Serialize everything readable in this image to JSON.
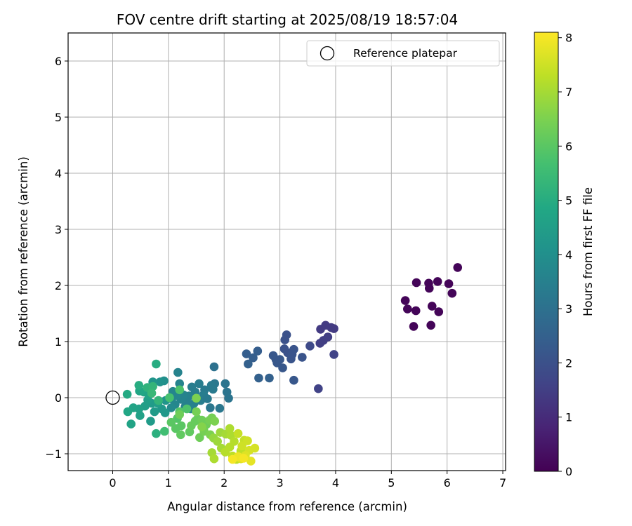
{
  "chart_data": {
    "type": "scatter",
    "title": "FOV centre drift starting at 2025/08/19 18:57:04",
    "xlabel": "Angular distance from reference (arcmin)",
    "ylabel": "Rotation from reference (arcmin)",
    "xlim": [
      -0.8,
      7.05
    ],
    "ylim": [
      -1.3,
      6.5
    ],
    "xticks": [
      "0",
      "1",
      "2",
      "3",
      "4",
      "5",
      "6",
      "7"
    ],
    "yticks": [
      "−1",
      "0",
      "1",
      "2",
      "3",
      "4",
      "5",
      "6"
    ],
    "grid": true,
    "legend": {
      "position": "top-right",
      "entries": [
        "Reference platepar"
      ]
    },
    "reference_point": {
      "label": "Reference platepar",
      "x": 0.0,
      "y": 0.0,
      "marker": "open-circle"
    },
    "colorbar": {
      "label": "Hours from first FF file",
      "range": [
        0,
        8.1
      ],
      "ticks": [
        "0",
        "1",
        "2",
        "3",
        "4",
        "5",
        "6",
        "7",
        "8"
      ],
      "colormap": "viridis"
    },
    "color_stops": [
      "#440154",
      "#482475",
      "#414487",
      "#355f8d",
      "#2a788e",
      "#21918c",
      "#22a884",
      "#44bf70",
      "#7ad151",
      "#bddf26",
      "#fde725"
    ],
    "points": [
      {
        "x": 5.25,
        "y": 1.73,
        "t": 0.1
      },
      {
        "x": 5.45,
        "y": 2.05,
        "t": 0.1
      },
      {
        "x": 5.67,
        "y": 2.04,
        "t": 0.1
      },
      {
        "x": 5.83,
        "y": 2.07,
        "t": 0.1
      },
      {
        "x": 6.03,
        "y": 2.03,
        "t": 0.1
      },
      {
        "x": 6.19,
        "y": 2.32,
        "t": 0.1
      },
      {
        "x": 5.68,
        "y": 1.95,
        "t": 0.1
      },
      {
        "x": 5.73,
        "y": 1.63,
        "t": 0.1
      },
      {
        "x": 5.85,
        "y": 1.53,
        "t": 0.1
      },
      {
        "x": 5.29,
        "y": 1.58,
        "t": 0.1
      },
      {
        "x": 5.44,
        "y": 1.55,
        "t": 0.1
      },
      {
        "x": 6.09,
        "y": 1.86,
        "t": 0.1
      },
      {
        "x": 5.4,
        "y": 1.27,
        "t": 0.1
      },
      {
        "x": 5.71,
        "y": 1.29,
        "t": 0.1
      },
      {
        "x": 3.73,
        "y": 1.22,
        "t": 1.4
      },
      {
        "x": 3.82,
        "y": 1.29,
        "t": 1.4
      },
      {
        "x": 3.92,
        "y": 1.25,
        "t": 1.4
      },
      {
        "x": 3.97,
        "y": 1.23,
        "t": 1.4
      },
      {
        "x": 3.86,
        "y": 1.08,
        "t": 1.5
      },
      {
        "x": 3.78,
        "y": 1.02,
        "t": 1.5
      },
      {
        "x": 3.72,
        "y": 0.97,
        "t": 1.5
      },
      {
        "x": 3.97,
        "y": 0.77,
        "t": 1.6
      },
      {
        "x": 3.69,
        "y": 0.16,
        "t": 1.6
      },
      {
        "x": 3.54,
        "y": 0.92,
        "t": 1.8
      },
      {
        "x": 3.12,
        "y": 1.12,
        "t": 2.0
      },
      {
        "x": 3.09,
        "y": 1.03,
        "t": 2.0
      },
      {
        "x": 3.08,
        "y": 0.87,
        "t": 2.0
      },
      {
        "x": 3.14,
        "y": 0.8,
        "t": 2.0
      },
      {
        "x": 3.25,
        "y": 0.86,
        "t": 2.1
      },
      {
        "x": 3.22,
        "y": 0.77,
        "t": 2.1
      },
      {
        "x": 3.2,
        "y": 0.69,
        "t": 2.1
      },
      {
        "x": 3.4,
        "y": 0.72,
        "t": 2.1
      },
      {
        "x": 3.25,
        "y": 0.31,
        "t": 2.2
      },
      {
        "x": 2.88,
        "y": 0.75,
        "t": 2.2
      },
      {
        "x": 2.93,
        "y": 0.68,
        "t": 2.2
      },
      {
        "x": 2.95,
        "y": 0.62,
        "t": 2.2
      },
      {
        "x": 3.0,
        "y": 0.68,
        "t": 2.2
      },
      {
        "x": 3.05,
        "y": 0.53,
        "t": 2.2
      },
      {
        "x": 2.6,
        "y": 0.83,
        "t": 2.4
      },
      {
        "x": 2.52,
        "y": 0.71,
        "t": 2.4
      },
      {
        "x": 2.4,
        "y": 0.78,
        "t": 2.4
      },
      {
        "x": 2.43,
        "y": 0.6,
        "t": 2.5
      },
      {
        "x": 2.62,
        "y": 0.35,
        "t": 2.5
      },
      {
        "x": 2.81,
        "y": 0.35,
        "t": 2.5
      },
      {
        "x": 1.82,
        "y": 0.55,
        "t": 3.0
      },
      {
        "x": 2.02,
        "y": 0.25,
        "t": 3.1
      },
      {
        "x": 2.05,
        "y": 0.1,
        "t": 3.1
      },
      {
        "x": 2.08,
        "y": -0.01,
        "t": 3.1
      },
      {
        "x": 1.92,
        "y": -0.19,
        "t": 3.2
      },
      {
        "x": 1.75,
        "y": -0.18,
        "t": 3.2
      },
      {
        "x": 1.83,
        "y": 0.25,
        "t": 3.2
      },
      {
        "x": 1.77,
        "y": 0.22,
        "t": 3.3
      },
      {
        "x": 1.8,
        "y": 0.15,
        "t": 3.3
      },
      {
        "x": 1.65,
        "y": 0.14,
        "t": 3.3
      },
      {
        "x": 1.55,
        "y": 0.25,
        "t": 3.4
      },
      {
        "x": 1.48,
        "y": 0.1,
        "t": 3.4
      },
      {
        "x": 1.42,
        "y": 0.19,
        "t": 3.4
      },
      {
        "x": 1.37,
        "y": 0.03,
        "t": 3.5
      },
      {
        "x": 1.34,
        "y": -0.09,
        "t": 3.5
      },
      {
        "x": 1.3,
        "y": -0.16,
        "t": 3.5
      },
      {
        "x": 1.23,
        "y": -0.03,
        "t": 3.6
      },
      {
        "x": 1.2,
        "y": 0.25,
        "t": 3.6
      },
      {
        "x": 1.17,
        "y": 0.45,
        "t": 3.6
      },
      {
        "x": 1.08,
        "y": 0.11,
        "t": 3.7
      },
      {
        "x": 1.05,
        "y": -0.02,
        "t": 3.7
      },
      {
        "x": 1.12,
        "y": -0.12,
        "t": 3.7
      },
      {
        "x": 1.05,
        "y": -0.18,
        "t": 3.8
      },
      {
        "x": 1.27,
        "y": 0.05,
        "t": 3.6
      },
      {
        "x": 1.46,
        "y": -0.1,
        "t": 3.5
      },
      {
        "x": 1.58,
        "y": -0.05,
        "t": 3.4
      },
      {
        "x": 1.63,
        "y": 0.05,
        "t": 3.4
      },
      {
        "x": 1.7,
        "y": -0.02,
        "t": 3.3
      },
      {
        "x": 1.15,
        "y": 0.04,
        "t": 3.7
      },
      {
        "x": 1.4,
        "y": -0.2,
        "t": 3.6
      },
      {
        "x": 0.92,
        "y": 0.3,
        "t": 4.0
      },
      {
        "x": 0.85,
        "y": 0.28,
        "t": 4.1
      },
      {
        "x": 0.72,
        "y": 0.28,
        "t": 4.2
      },
      {
        "x": 0.95,
        "y": -0.05,
        "t": 4.2
      },
      {
        "x": 0.94,
        "y": -0.27,
        "t": 4.3
      },
      {
        "x": 0.88,
        "y": -0.2,
        "t": 4.3
      },
      {
        "x": 0.68,
        "y": -0.42,
        "t": 4.4
      },
      {
        "x": 0.75,
        "y": -0.25,
        "t": 4.4
      },
      {
        "x": 0.7,
        "y": -0.1,
        "t": 4.4
      },
      {
        "x": 0.63,
        "y": -0.04,
        "t": 4.5
      },
      {
        "x": 0.58,
        "y": -0.15,
        "t": 4.5
      },
      {
        "x": 0.49,
        "y": -0.32,
        "t": 4.6
      },
      {
        "x": 0.47,
        "y": -0.2,
        "t": 4.6
      },
      {
        "x": 0.37,
        "y": -0.18,
        "t": 4.7
      },
      {
        "x": 0.33,
        "y": -0.47,
        "t": 4.7
      },
      {
        "x": 0.27,
        "y": -0.25,
        "t": 4.8
      },
      {
        "x": 0.48,
        "y": 0.12,
        "t": 4.8
      },
      {
        "x": 0.56,
        "y": 0.1,
        "t": 4.8
      },
      {
        "x": 0.26,
        "y": 0.06,
        "t": 4.9
      },
      {
        "x": 0.81,
        "y": -0.1,
        "t": 4.5
      },
      {
        "x": 0.65,
        "y": 0.05,
        "t": 4.7
      },
      {
        "x": 0.47,
        "y": 0.22,
        "t": 5.0
      },
      {
        "x": 0.78,
        "y": 0.6,
        "t": 5.0
      },
      {
        "x": 0.78,
        "y": -0.64,
        "t": 5.1
      },
      {
        "x": 0.62,
        "y": 0.18,
        "t": 5.2
      },
      {
        "x": 0.72,
        "y": 0.2,
        "t": 5.3
      },
      {
        "x": 0.82,
        "y": -0.05,
        "t": 5.3
      },
      {
        "x": 0.7,
        "y": 0.08,
        "t": 5.4
      },
      {
        "x": 0.93,
        "y": -0.6,
        "t": 5.6
      },
      {
        "x": 1.02,
        "y": 0.0,
        "t": 5.7
      },
      {
        "x": 1.2,
        "y": 0.14,
        "t": 5.8
      },
      {
        "x": 1.33,
        "y": -0.2,
        "t": 5.8
      },
      {
        "x": 1.2,
        "y": -0.25,
        "t": 5.9
      },
      {
        "x": 1.16,
        "y": -0.37,
        "t": 5.9
      },
      {
        "x": 1.23,
        "y": -0.5,
        "t": 6.0
      },
      {
        "x": 1.05,
        "y": -0.44,
        "t": 6.0
      },
      {
        "x": 1.13,
        "y": -0.55,
        "t": 6.0
      },
      {
        "x": 1.22,
        "y": -0.66,
        "t": 6.1
      },
      {
        "x": 1.38,
        "y": -0.61,
        "t": 6.1
      },
      {
        "x": 1.41,
        "y": -0.5,
        "t": 6.2
      },
      {
        "x": 1.48,
        "y": -0.42,
        "t": 6.2
      },
      {
        "x": 1.52,
        "y": -0.38,
        "t": 6.2
      },
      {
        "x": 1.6,
        "y": -0.4,
        "t": 6.3
      },
      {
        "x": 1.68,
        "y": -0.48,
        "t": 6.3
      },
      {
        "x": 1.56,
        "y": -0.71,
        "t": 6.3
      },
      {
        "x": 1.64,
        "y": -0.6,
        "t": 6.4
      },
      {
        "x": 1.74,
        "y": -0.4,
        "t": 6.4
      },
      {
        "x": 1.78,
        "y": -0.36,
        "t": 6.4
      },
      {
        "x": 1.83,
        "y": -0.42,
        "t": 6.5
      },
      {
        "x": 1.75,
        "y": -0.66,
        "t": 6.5
      },
      {
        "x": 1.5,
        "y": -0.01,
        "t": 6.5
      },
      {
        "x": 1.5,
        "y": -0.25,
        "t": 6.4
      },
      {
        "x": 1.2,
        "y": -0.3,
        "t": 6.3
      },
      {
        "x": 1.6,
        "y": -0.52,
        "t": 6.6
      },
      {
        "x": 1.81,
        "y": -0.72,
        "t": 6.8
      },
      {
        "x": 1.88,
        "y": -0.78,
        "t": 6.9
      },
      {
        "x": 1.93,
        "y": -0.62,
        "t": 6.9
      },
      {
        "x": 2.03,
        "y": -0.65,
        "t": 7.0
      },
      {
        "x": 1.95,
        "y": -0.9,
        "t": 7.0
      },
      {
        "x": 1.78,
        "y": -0.98,
        "t": 7.0
      },
      {
        "x": 1.82,
        "y": -1.09,
        "t": 7.1
      },
      {
        "x": 2.1,
        "y": -0.55,
        "t": 7.1
      },
      {
        "x": 2.12,
        "y": -0.67,
        "t": 7.1
      },
      {
        "x": 2.18,
        "y": -0.78,
        "t": 7.2
      },
      {
        "x": 2.1,
        "y": -0.88,
        "t": 7.2
      },
      {
        "x": 2.02,
        "y": -0.97,
        "t": 7.2
      },
      {
        "x": 2.15,
        "y": -1.04,
        "t": 7.3
      },
      {
        "x": 2.22,
        "y": -1.1,
        "t": 7.3
      },
      {
        "x": 2.3,
        "y": -0.95,
        "t": 7.3
      },
      {
        "x": 2.25,
        "y": -0.64,
        "t": 7.4
      },
      {
        "x": 2.36,
        "y": -0.76,
        "t": 7.4
      },
      {
        "x": 2.32,
        "y": -0.86,
        "t": 7.5
      },
      {
        "x": 2.42,
        "y": -0.77,
        "t": 7.5
      },
      {
        "x": 2.45,
        "y": -0.94,
        "t": 7.6
      },
      {
        "x": 2.55,
        "y": -0.9,
        "t": 7.6
      },
      {
        "x": 2.38,
        "y": -1.03,
        "t": 7.7
      },
      {
        "x": 2.3,
        "y": -1.09,
        "t": 7.7
      },
      {
        "x": 2.48,
        "y": -1.13,
        "t": 7.8
      },
      {
        "x": 2.25,
        "y": -1.05,
        "t": 7.9
      },
      {
        "x": 2.15,
        "y": -1.1,
        "t": 8.0
      },
      {
        "x": 2.35,
        "y": -1.08,
        "t": 8.0
      }
    ]
  }
}
